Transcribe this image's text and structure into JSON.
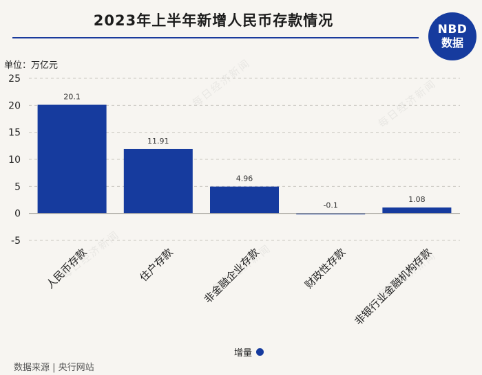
{
  "header": {
    "title": "2023年上半年新增人民币存款情况",
    "logo_line1": "NBD",
    "logo_line2": "数据"
  },
  "unit_label": "单位：万亿元",
  "watermark_text": "每日经济新闻",
  "source_text": "数据来源 | 央行网站",
  "colors": {
    "bar": "#163b9e",
    "background": "#f7f5f1",
    "accent_rule": "#1a3a9c"
  },
  "chart_data": {
    "type": "bar",
    "categories": [
      "人民币存款",
      "住户存款",
      "非金融企业存款",
      "财政性存款",
      "非银行业金融机构存款"
    ],
    "series": [
      {
        "name": "增量",
        "values": [
          20.1,
          11.91,
          4.96,
          -0.1,
          1.08
        ]
      }
    ],
    "data_labels": [
      "20.1",
      "11.91",
      "4.96",
      "-0.1",
      "1.08"
    ],
    "yticks": [
      "25",
      "20",
      "15",
      "10",
      "5",
      "0",
      "-5"
    ],
    "ylim": [
      -5,
      25
    ],
    "grid": true,
    "legend": "bottom-center"
  }
}
